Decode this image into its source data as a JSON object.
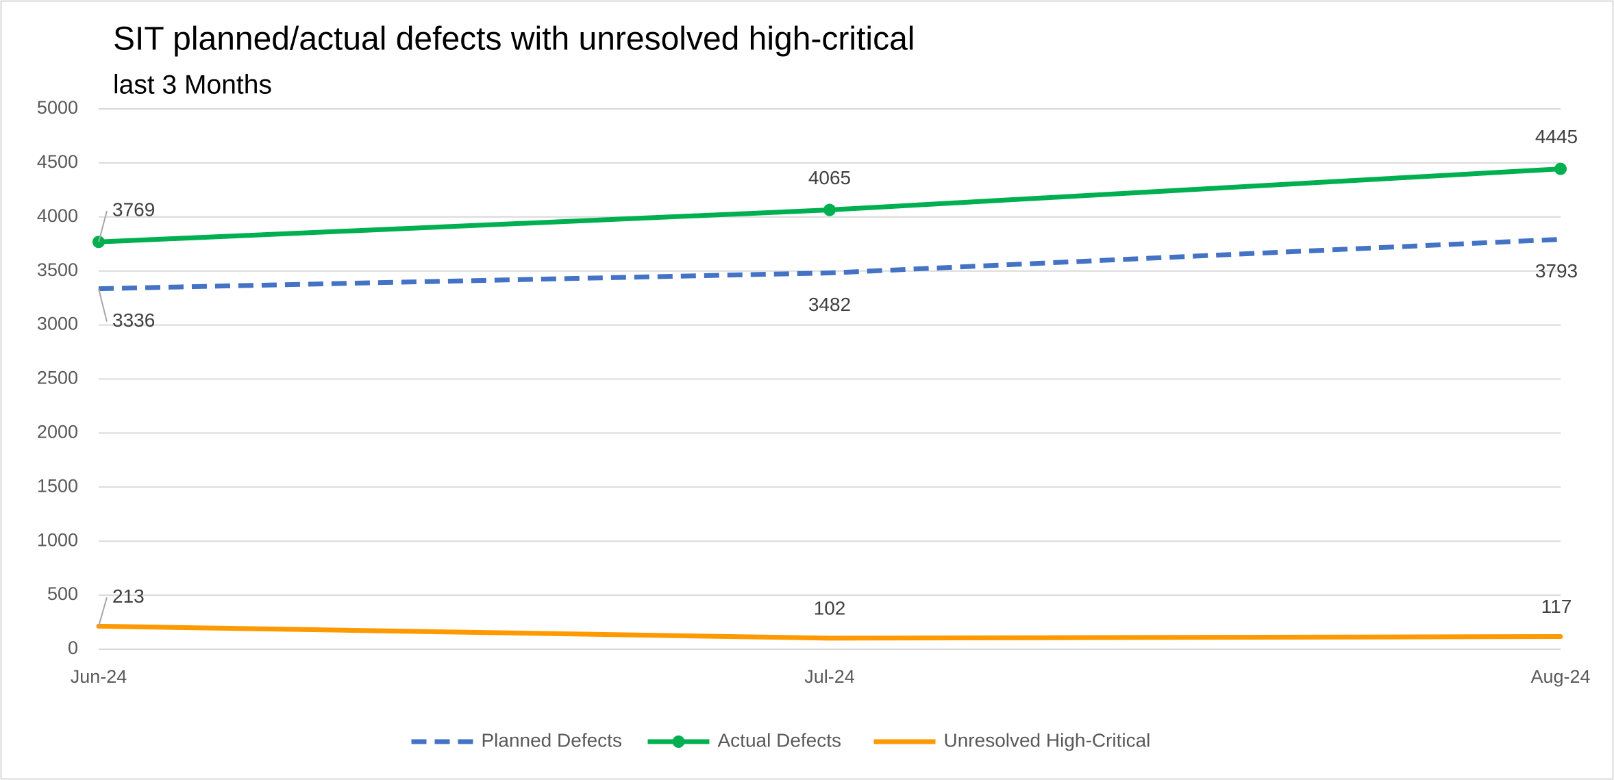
{
  "chart_data": {
    "type": "line",
    "title": "SIT planned/actual  defects with unresolved high-critical",
    "subtitle": "last 3 Months",
    "categories": [
      "Jun-24",
      "Jul-24",
      "Aug-24"
    ],
    "series": [
      {
        "name": "Planned Defects",
        "color": "#4472c4",
        "dashed": true,
        "markers": false,
        "values": [
          3336,
          3482,
          3793
        ]
      },
      {
        "name": "Actual Defects",
        "color": "#00b050",
        "dashed": false,
        "markers": true,
        "values": [
          3769,
          4065,
          4445
        ]
      },
      {
        "name": "Unresolved High-Critical",
        "color": "#ff9900",
        "dashed": false,
        "markers": false,
        "values": [
          213,
          102,
          117
        ]
      }
    ],
    "ylim": [
      0,
      5000
    ],
    "yticks": [
      0,
      500,
      1000,
      1500,
      2000,
      2500,
      3000,
      3500,
      4000,
      4500,
      5000
    ],
    "grid": true,
    "legend": "bottom"
  }
}
